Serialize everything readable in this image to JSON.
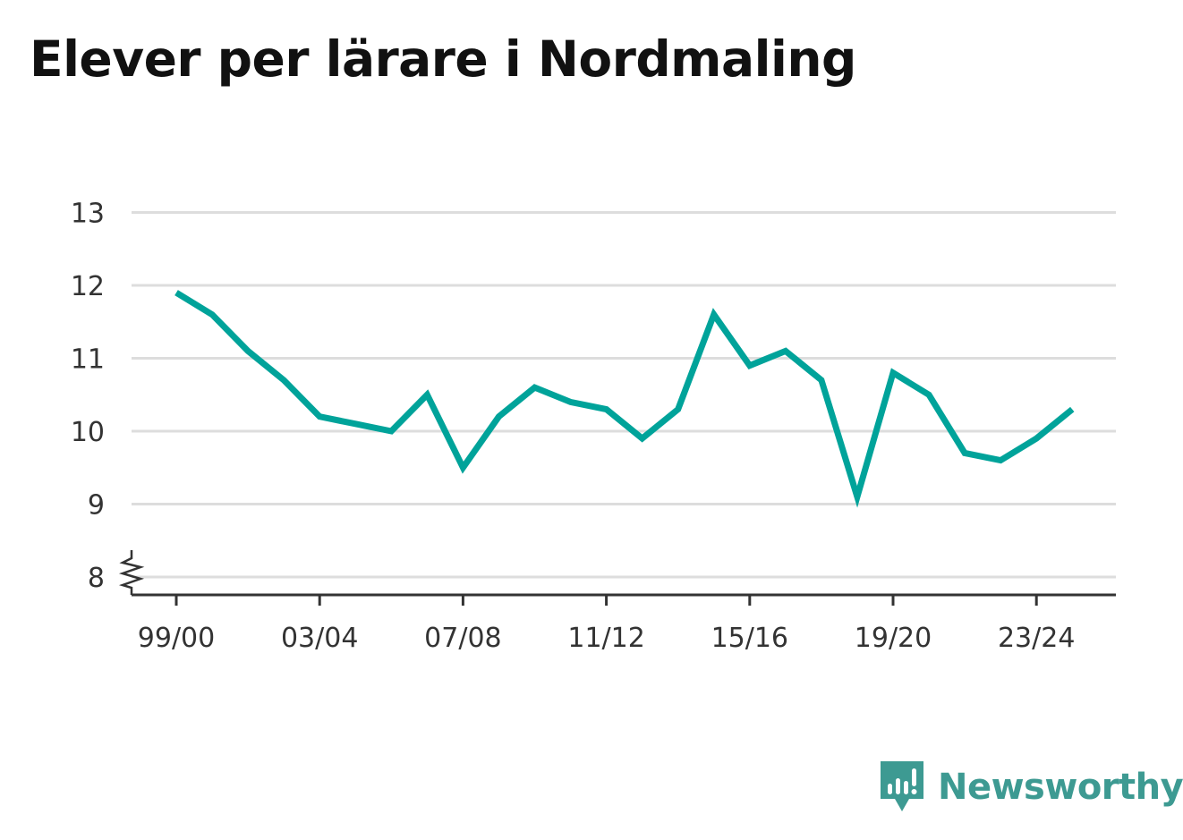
{
  "colors": {
    "line": "#00a39a",
    "grid": "#dddddd",
    "axis": "#333333",
    "brand": "#3d9a92"
  },
  "brand": {
    "name": "Newsworthy",
    "icon": "newsworthy-logo-icon"
  },
  "chart_data": {
    "type": "line",
    "title": "Elever per lärare i Nordmaling",
    "xlabel": "",
    "ylabel": "",
    "ylim": [
      8,
      13
    ],
    "y_axis_break": true,
    "yticks": [
      8,
      9,
      10,
      11,
      12,
      13
    ],
    "grid": true,
    "x": [
      "99/00",
      "00/01",
      "01/02",
      "02/03",
      "03/04",
      "04/05",
      "05/06",
      "06/07",
      "07/08",
      "08/09",
      "09/10",
      "10/11",
      "11/12",
      "12/13",
      "13/14",
      "14/15",
      "15/16",
      "16/17",
      "17/18",
      "18/19",
      "19/20",
      "20/21",
      "21/22",
      "22/23",
      "23/24",
      "24/25"
    ],
    "xtick_labels": [
      "99/00",
      "03/04",
      "07/08",
      "11/12",
      "15/16",
      "19/20",
      "23/24"
    ],
    "series": [
      {
        "values": [
          11.9,
          11.6,
          11.1,
          10.7,
          10.2,
          10.1,
          10.0,
          10.5,
          9.5,
          10.2,
          10.6,
          10.4,
          10.3,
          9.9,
          10.3,
          11.6,
          10.9,
          11.1,
          10.7,
          9.1,
          10.8,
          10.5,
          9.7,
          9.6,
          9.9,
          10.3
        ]
      }
    ]
  }
}
